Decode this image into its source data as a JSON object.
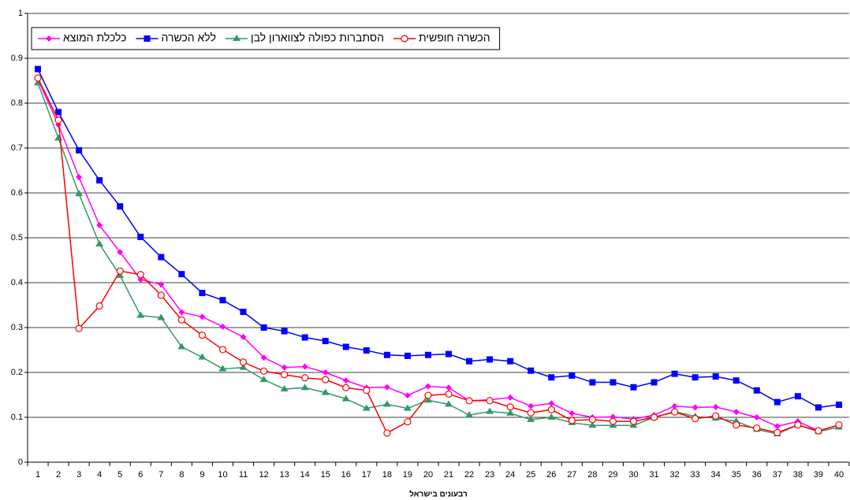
{
  "chart_data": {
    "type": "line",
    "x_label": "רבעונים בישראל",
    "categories": [
      "1",
      "2",
      "3",
      "4",
      "5",
      "6",
      "7",
      "8",
      "9",
      "10",
      "11",
      "12",
      "13",
      "14",
      "15",
      "16",
      "17",
      "18",
      "19",
      "20",
      "21",
      "22",
      "23",
      "24",
      "25",
      "26",
      "27",
      "28",
      "29",
      "30",
      "31",
      "32",
      "33",
      "34",
      "35",
      "36",
      "37",
      "38",
      "39",
      "40"
    ],
    "ylim": [
      0,
      1
    ],
    "yticks": [
      0,
      0.1,
      0.2,
      0.3,
      0.4,
      0.5,
      0.6,
      0.7,
      0.8,
      0.9,
      1
    ],
    "grid": true,
    "series": [
      {
        "name": "כלכלת המוצא",
        "color": "#ff00ff",
        "marker": "diamond",
        "values": [
          0.853,
          0.752,
          0.635,
          0.528,
          0.468,
          0.407,
          0.396,
          0.334,
          0.324,
          0.302,
          0.279,
          0.233,
          0.211,
          0.213,
          0.2,
          0.182,
          0.166,
          0.167,
          0.149,
          0.169,
          0.166,
          0.137,
          0.139,
          0.144,
          0.125,
          0.131,
          0.109,
          0.1,
          0.101,
          0.096,
          0.105,
          0.125,
          0.122,
          0.123,
          0.112,
          0.1,
          0.08,
          0.091,
          0.07,
          0.083
        ]
      },
      {
        "name": "ללא הכשרה",
        "color": "#0000ff",
        "marker": "square",
        "values": [
          0.876,
          0.78,
          0.695,
          0.628,
          0.57,
          0.502,
          0.457,
          0.419,
          0.377,
          0.361,
          0.335,
          0.3,
          0.292,
          0.278,
          0.27,
          0.257,
          0.249,
          0.239,
          0.237,
          0.239,
          0.241,
          0.225,
          0.229,
          0.225,
          0.204,
          0.189,
          0.193,
          0.178,
          0.178,
          0.167,
          0.178,
          0.197,
          0.189,
          0.191,
          0.182,
          0.16,
          0.134,
          0.147,
          0.122,
          0.128
        ]
      },
      {
        "name": "הסתברות כפולה לצווארון לבן",
        "color": "#339966",
        "marker": "triangle",
        "values": [
          0.845,
          0.722,
          0.598,
          0.486,
          0.416,
          0.327,
          0.322,
          0.257,
          0.234,
          0.208,
          0.211,
          0.184,
          0.163,
          0.166,
          0.155,
          0.141,
          0.12,
          0.129,
          0.12,
          0.138,
          0.129,
          0.105,
          0.113,
          0.109,
          0.095,
          0.1,
          0.088,
          0.082,
          0.082,
          0.082,
          0.1,
          0.113,
          0.102,
          0.098,
          0.091,
          0.073,
          0.063,
          0.083,
          0.068,
          0.078
        ]
      },
      {
        "name": "הכשרה חופשית",
        "color": "#ff0000",
        "marker": "circle",
        "values": [
          0.856,
          0.762,
          0.298,
          0.348,
          0.426,
          0.418,
          0.372,
          0.317,
          0.283,
          0.251,
          0.223,
          0.203,
          0.195,
          0.188,
          0.184,
          0.166,
          0.16,
          0.065,
          0.09,
          0.149,
          0.152,
          0.137,
          0.137,
          0.123,
          0.11,
          0.117,
          0.093,
          0.095,
          0.091,
          0.091,
          0.1,
          0.112,
          0.097,
          0.103,
          0.083,
          0.076,
          0.066,
          0.083,
          0.07,
          0.083
        ]
      }
    ]
  }
}
